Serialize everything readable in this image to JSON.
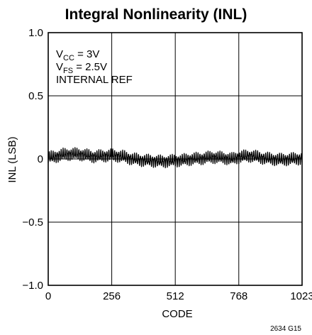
{
  "chart_data": {
    "type": "line",
    "title": "Integral Nonlinearity (INL)",
    "xlabel": "CODE",
    "ylabel": "INL (LSB)",
    "xlim": [
      0,
      1023
    ],
    "ylim": [
      -1.0,
      1.0
    ],
    "x_ticks": [
      0,
      256,
      512,
      768,
      1023
    ],
    "x_tick_labels": [
      "0",
      "256",
      "512",
      "768",
      "1023"
    ],
    "y_ticks": [
      1.0,
      0.5,
      0,
      -0.5,
      -1.0
    ],
    "y_tick_labels": [
      "1.0",
      "0.5",
      "0",
      "−0.5",
      "−1.0"
    ],
    "grid": true,
    "annotation": {
      "vcc_main": "V",
      "vcc_sub": "CC",
      "vcc_rest": " = 3V",
      "vfs_main": "V",
      "vfs_sub": "FS",
      "vfs_rest": " = 2.5V",
      "ref": "INTERNAL REF"
    },
    "figure_id": "2634 G15",
    "series": [
      {
        "line_color": "#000000",
        "envelope_x": [
          0,
          30,
          60,
          100,
          140,
          180,
          220,
          256,
          300,
          340,
          380,
          420,
          460,
          500,
          540,
          580,
          620,
          660,
          700,
          740,
          780,
          820,
          860,
          900,
          940,
          980,
          1023
        ],
        "envelope_center": [
          0.01,
          0.02,
          0.035,
          0.04,
          0.035,
          0.02,
          0.025,
          0.03,
          0.02,
          0.0,
          -0.01,
          -0.015,
          -0.02,
          -0.015,
          -0.01,
          0.0,
          0.005,
          0.015,
          0.01,
          0.0,
          0.02,
          0.025,
          0.01,
          0.0,
          -0.005,
          0.0,
          0.005
        ],
        "envelope_amplitude": 0.04,
        "ripple_period_codes": 8
      }
    ]
  }
}
